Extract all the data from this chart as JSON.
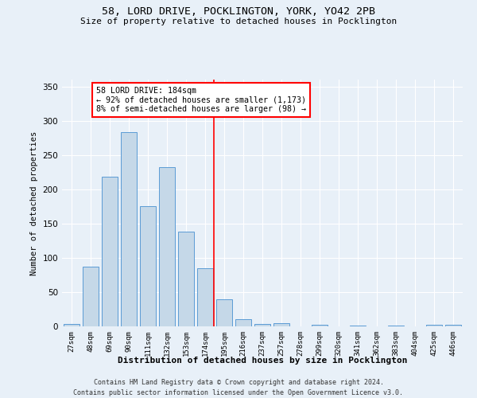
{
  "title1": "58, LORD DRIVE, POCKLINGTON, YORK, YO42 2PB",
  "title2": "Size of property relative to detached houses in Pocklington",
  "xlabel": "Distribution of detached houses by size in Pocklington",
  "ylabel": "Number of detached properties",
  "bins": [
    "27sqm",
    "48sqm",
    "69sqm",
    "90sqm",
    "111sqm",
    "132sqm",
    "153sqm",
    "174sqm",
    "195sqm",
    "216sqm",
    "237sqm",
    "257sqm",
    "278sqm",
    "299sqm",
    "320sqm",
    "341sqm",
    "362sqm",
    "383sqm",
    "404sqm",
    "425sqm",
    "446sqm"
  ],
  "values": [
    3,
    87,
    218,
    283,
    175,
    232,
    138,
    85,
    40,
    10,
    4,
    5,
    0,
    2,
    0,
    1,
    0,
    1,
    0,
    2,
    2
  ],
  "bar_color": "#c5d8e8",
  "bar_edge_color": "#5b9bd5",
  "ref_line_label": "58 LORD DRIVE: 184sqm",
  "annotation_line1": "← 92% of detached houses are smaller (1,173)",
  "annotation_line2": "8% of semi-detached houses are larger (98) →",
  "ylim": [
    0,
    360
  ],
  "yticks": [
    0,
    50,
    100,
    150,
    200,
    250,
    300,
    350
  ],
  "bg_color": "#e8f0f8",
  "footer1": "Contains HM Land Registry data © Crown copyright and database right 2024.",
  "footer2": "Contains public sector information licensed under the Open Government Licence v3.0."
}
